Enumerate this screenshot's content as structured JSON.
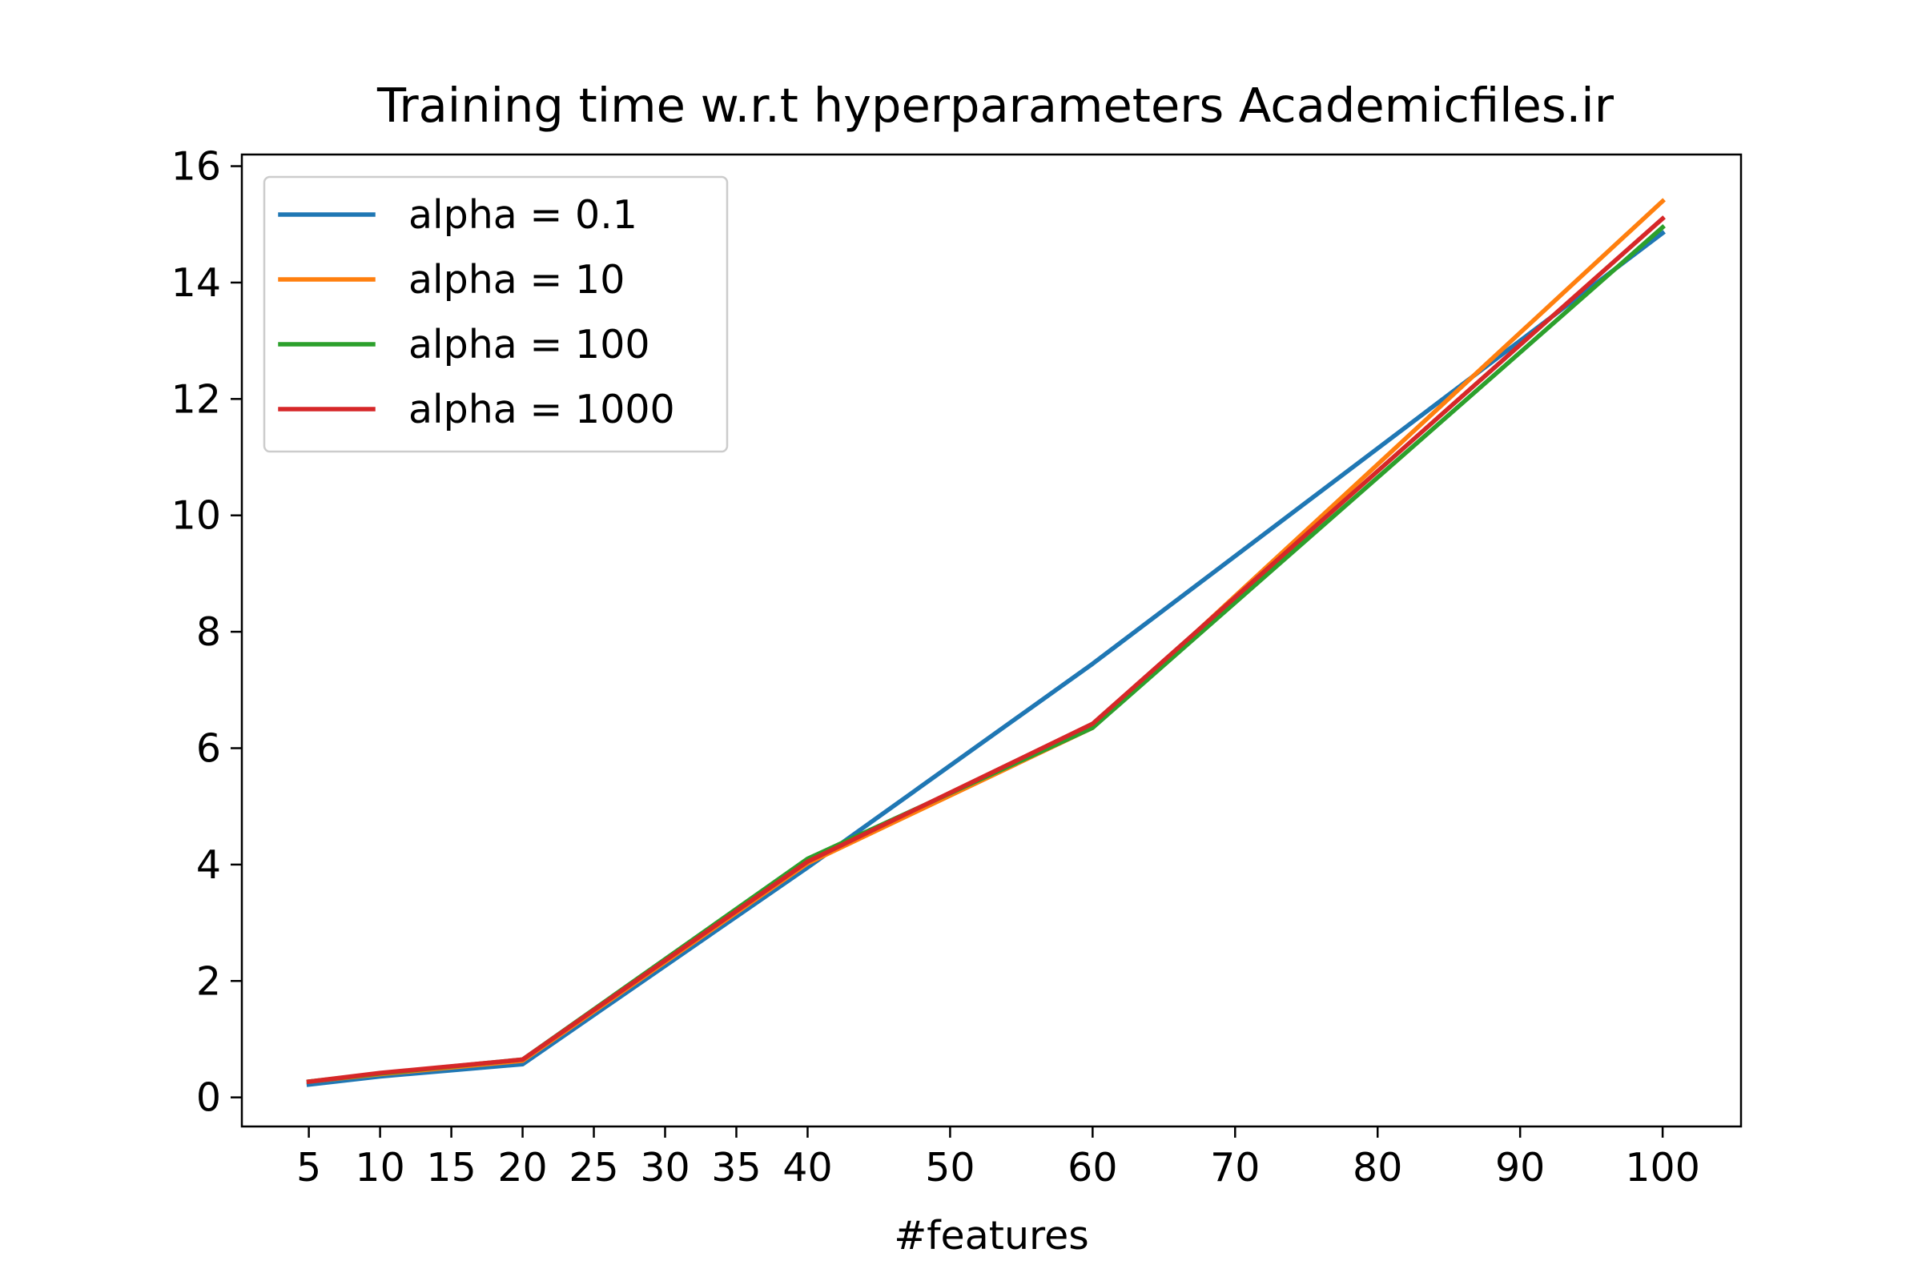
{
  "chart_data": {
    "type": "line",
    "title": "Training time w.r.t hyperparameters Academicfiles.ir",
    "xlabel": "#features",
    "ylabel": "",
    "xlim": [
      0.3,
      105.5
    ],
    "ylim": [
      -0.5,
      16.2
    ],
    "xticks": [
      5,
      10,
      15,
      20,
      25,
      30,
      35,
      40,
      50,
      60,
      70,
      80,
      90,
      100
    ],
    "yticks": [
      0,
      2,
      4,
      6,
      8,
      10,
      12,
      14,
      16
    ],
    "grid": false,
    "legend_position": "upper left",
    "x": [
      5,
      10,
      20,
      40,
      60,
      100
    ],
    "series": [
      {
        "name": "alpha = 0.1",
        "color": "#1f77b4",
        "values": [
          0.22,
          0.36,
          0.57,
          3.95,
          7.45,
          14.85
        ]
      },
      {
        "name": "alpha = 10",
        "color": "#ff7f0e",
        "values": [
          0.27,
          0.4,
          0.63,
          4.02,
          6.35,
          15.4
        ]
      },
      {
        "name": "alpha = 100",
        "color": "#2ca02c",
        "values": [
          0.27,
          0.41,
          0.65,
          4.1,
          6.35,
          14.95
        ]
      },
      {
        "name": "alpha = 1000",
        "color": "#d62728",
        "values": [
          0.27,
          0.42,
          0.65,
          4.05,
          6.42,
          15.1
        ]
      }
    ]
  }
}
